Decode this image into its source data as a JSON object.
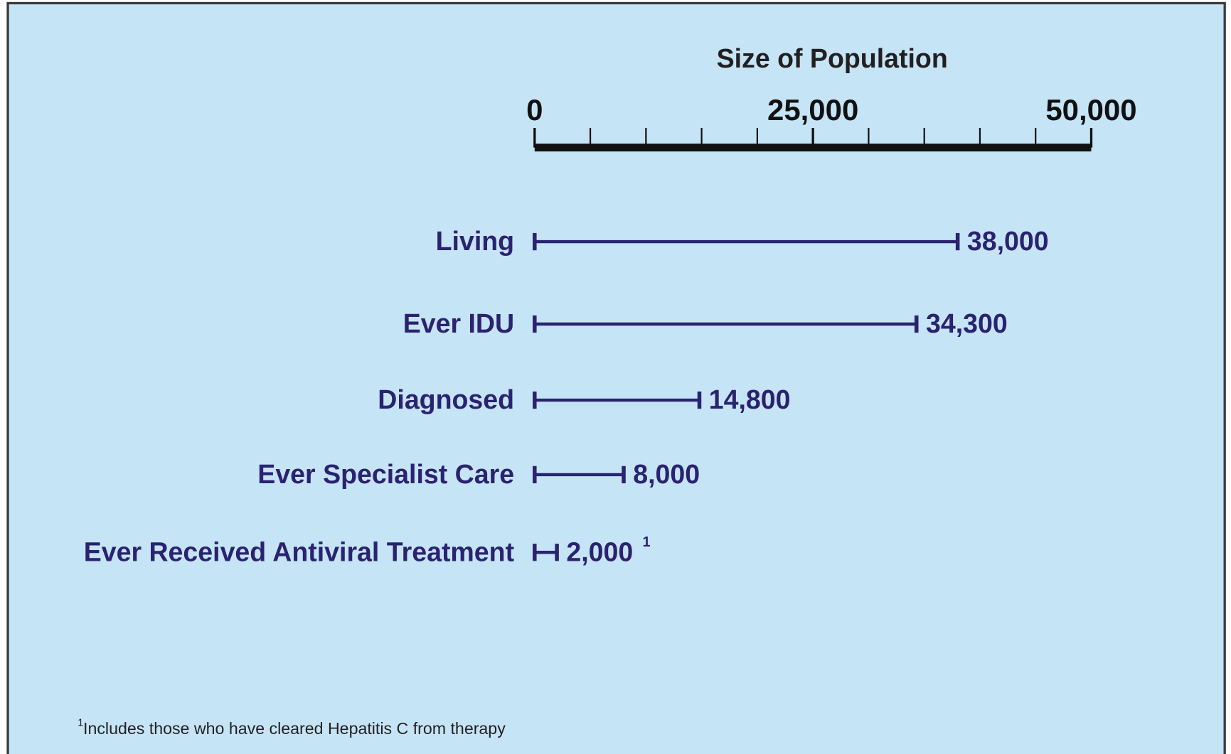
{
  "chart_data": {
    "type": "range_bar",
    "title": "Size of Population",
    "categories": [
      "Living",
      "Ever IDU",
      "Diagnosed",
      "Ever Specialist Care",
      "Ever Received Antiviral Treatment"
    ],
    "values": [
      38000,
      34300,
      14800,
      8000,
      2000
    ],
    "value_labels": [
      "38,000",
      "34,300",
      "14,800",
      "8,000",
      "2,000"
    ],
    "value_label_markers": [
      null,
      null,
      null,
      null,
      "1"
    ],
    "color": "#2b2270",
    "xlim": [
      0,
      50000
    ],
    "xticks": [
      0,
      {
        "value": 25000,
        "label": "25,000"
      },
      {
        "value": 50000,
        "label": "50,000"
      }
    ],
    "minor_xticks": [
      5000,
      10000,
      15000,
      20000,
      30000,
      35000,
      40000,
      45000
    ],
    "footnote": {
      "marker": "1",
      "text": "Includes those who have cleared Hepatitis C from therapy"
    }
  }
}
